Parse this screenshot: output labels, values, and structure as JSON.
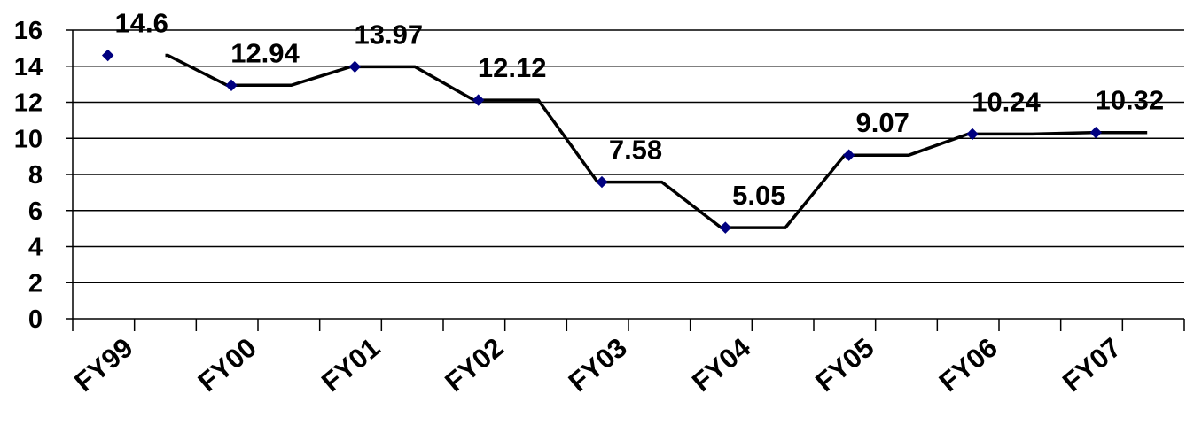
{
  "chart_data": {
    "type": "line",
    "categories": [
      "FY99",
      "FY00",
      "FY01",
      "FY02",
      "FY03",
      "FY04",
      "FY05",
      "FY06",
      "FY07"
    ],
    "series": [
      {
        "values": [
          14.6,
          12.94,
          13.97,
          12.12,
          7.58,
          5.05,
          9.07,
          10.24,
          10.32
        ],
        "labels": [
          "14.6",
          "12.94",
          "13.97",
          "12.12",
          "7.58",
          "5.05",
          "9.07",
          "10.24",
          "10.32"
        ],
        "marker": "diamond",
        "marker_color": "#000080",
        "line_color": "#000000"
      }
    ],
    "ylim": [
      0,
      16
    ],
    "yticks": [
      {
        "value": 0,
        "label": "0"
      },
      {
        "value": 2,
        "label": "2"
      },
      {
        "value": 4,
        "label": "4"
      },
      {
        "value": 6,
        "label": "6"
      },
      {
        "value": 8,
        "label": "8"
      },
      {
        "value": 10,
        "label": "10"
      },
      {
        "value": 12,
        "label": "12"
      },
      {
        "value": 14,
        "label": "14"
      },
      {
        "value": 16,
        "label": "16"
      }
    ],
    "grid": true,
    "legend": "none",
    "title": "",
    "xlabel": "",
    "ylabel": ""
  }
}
